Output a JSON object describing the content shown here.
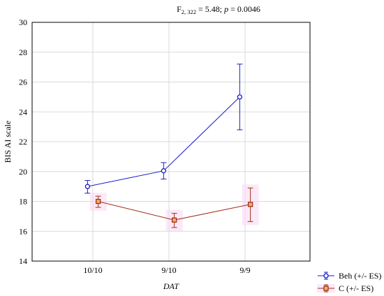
{
  "chart_data": {
    "type": "line",
    "title": {
      "f": "F",
      "df": "2, 322",
      "rest": " = 5.48; ",
      "p": "p",
      "p_rest": " = 0.0046"
    },
    "xlabel": "DAT",
    "ylabel": "BIS AI scale",
    "categories": [
      "10/10",
      "9/10",
      "9/9"
    ],
    "ylim": [
      14,
      30
    ],
    "yticks": [
      14,
      16,
      18,
      20,
      22,
      24,
      26,
      28,
      30
    ],
    "grid": true,
    "legend_position": "bottom-right, outside plot",
    "series": [
      {
        "name": "Beh (+/- ES)",
        "marker": "circle",
        "color": "#1a1acc",
        "values": [
          19.0,
          20.05,
          25.0
        ],
        "err_low": [
          18.55,
          19.5,
          22.8
        ],
        "err_high": [
          19.4,
          20.6,
          27.2
        ],
        "x_offset": -0.07
      },
      {
        "name": "C (+/- ES)",
        "marker": "square",
        "color": "#a0301a",
        "values": [
          18.0,
          16.75,
          17.8
        ],
        "err_low": [
          17.6,
          16.25,
          16.65
        ],
        "err_high": [
          18.35,
          17.2,
          18.9
        ],
        "x_offset": 0.07
      }
    ]
  }
}
